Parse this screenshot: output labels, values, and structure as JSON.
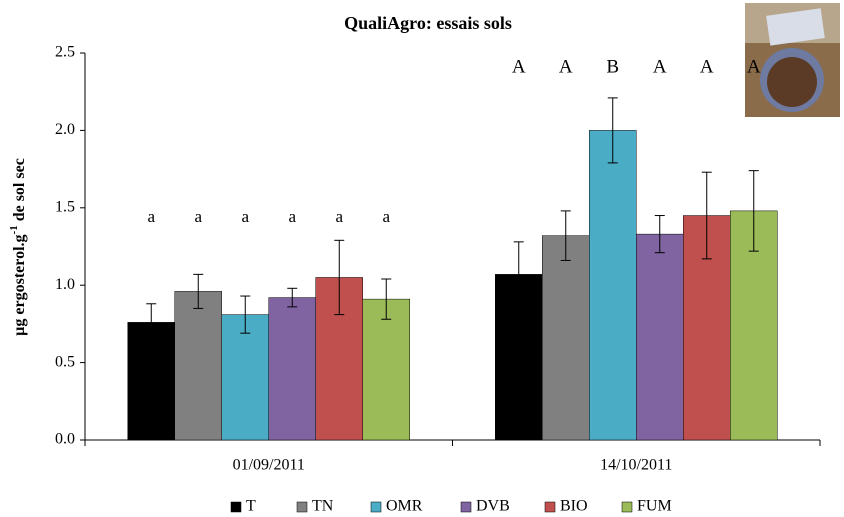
{
  "chart_data": {
    "type": "bar",
    "title": "QualiAgro:  essais sols",
    "ylabel": [
      "µg ergosterol.g",
      "-1",
      " de sol sec"
    ],
    "categories": [
      "01/09/2011",
      "14/10/2011"
    ],
    "series": [
      {
        "name": "T",
        "color": "#000000",
        "values": [
          0.76,
          1.07
        ],
        "errors": [
          0.12,
          0.21
        ],
        "letters": [
          "a",
          "A"
        ]
      },
      {
        "name": "TN",
        "color": "#808080",
        "values": [
          0.96,
          1.32
        ],
        "errors": [
          0.11,
          0.16
        ],
        "letters": [
          "a",
          "A"
        ]
      },
      {
        "name": "OMR",
        "color": "#4bacc6",
        "values": [
          0.81,
          2.0
        ],
        "errors": [
          0.12,
          0.21
        ],
        "letters": [
          "a",
          "B"
        ]
      },
      {
        "name": "DVB",
        "color": "#8064a2",
        "values": [
          0.92,
          1.33
        ],
        "errors": [
          0.06,
          0.12
        ],
        "letters": [
          "a",
          "A"
        ]
      },
      {
        "name": "BIO",
        "color": "#c0504d",
        "values": [
          1.05,
          1.45
        ],
        "errors": [
          0.24,
          0.28
        ],
        "letters": [
          "a",
          "A"
        ]
      },
      {
        "name": "FUM",
        "color": "#9bbb59",
        "values": [
          0.91,
          1.48
        ],
        "errors": [
          0.13,
          0.26
        ],
        "letters": [
          "a",
          "A"
        ]
      }
    ],
    "ylim": [
      0,
      2.5
    ],
    "yticks": [
      {
        "value": 0,
        "label": "0.0"
      },
      {
        "value": 0.5,
        "label": "0.5"
      },
      {
        "value": 1,
        "label": "1.0"
      },
      {
        "value": 1.5,
        "label": "1.5"
      },
      {
        "value": 2,
        "label": "2.0"
      },
      {
        "value": 2.5,
        "label": "2.5"
      }
    ],
    "grid": false,
    "legend": "bottom"
  }
}
